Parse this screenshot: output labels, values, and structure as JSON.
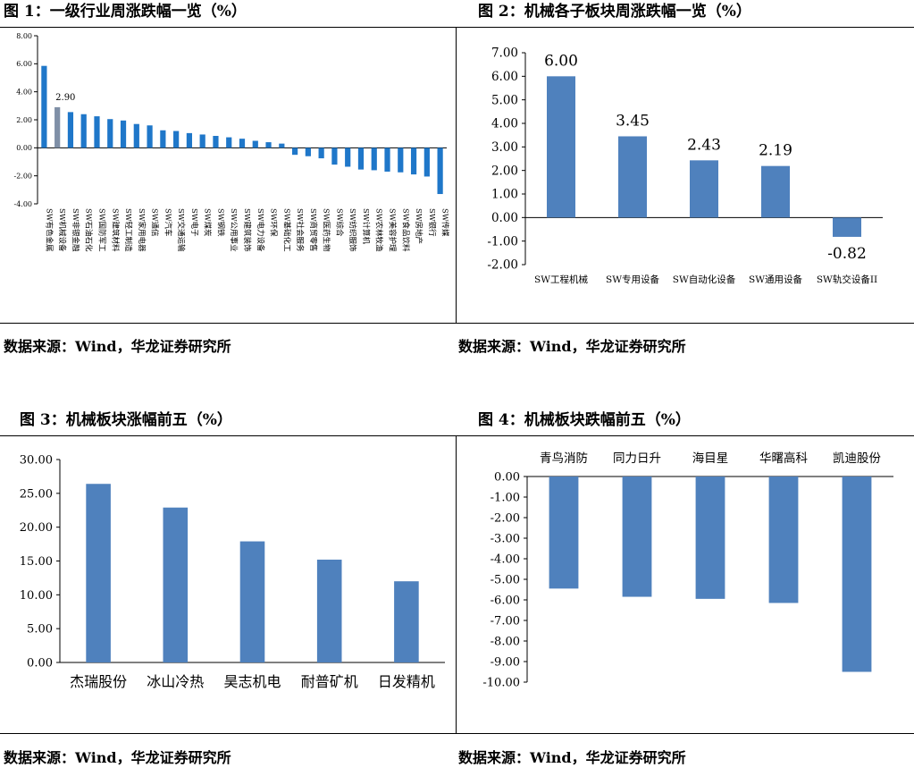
{
  "figures": [
    {
      "caption": "图 1：一级行业周涨跌幅一览（%）",
      "source": "数据来源：Wind，华龙证券研究所"
    },
    {
      "caption": "图 2：机械各子板块周涨跌幅一览（%）",
      "source": "数据来源：Wind，华龙证券研究所"
    },
    {
      "caption": "图 3：机械板块涨幅前五（%）",
      "source": "数据来源：Wind，华龙证券研究所"
    },
    {
      "caption": "图 4：机械板块跌幅前五（%）",
      "source": "数据来源：Wind，华龙证券研究所"
    }
  ],
  "chart_data": [
    {
      "type": "bar",
      "categories": [
        "SW有色金属",
        "SW机械设备",
        "SW非银金融",
        "SW石油石化",
        "SW国防军工",
        "SW建筑材料",
        "SW轻工制造",
        "SW家用电器",
        "SW通信",
        "SW汽车",
        "SW交通运输",
        "SW电子",
        "SW煤炭",
        "SW钢铁",
        "SW公用事业",
        "SW建筑装饰",
        "SW电力设备",
        "SW环保",
        "SW基础化工",
        "SW社会服务",
        "SW商贸零售",
        "SW医药生物",
        "SW综合",
        "SW纺织服饰",
        "SW计算机",
        "SW农林牧渔",
        "SW美容护理",
        "SW食品饮料",
        "SW房地产",
        "SW银行",
        "SW传媒"
      ],
      "values": [
        5.85,
        2.9,
        2.55,
        2.4,
        2.25,
        2.05,
        1.95,
        1.7,
        1.6,
        1.25,
        1.2,
        1.05,
        0.95,
        0.85,
        0.75,
        0.65,
        0.5,
        0.4,
        0.3,
        -0.5,
        -0.6,
        -0.75,
        -1.2,
        -1.35,
        -1.55,
        -1.6,
        -1.7,
        -1.75,
        -1.9,
        -2.05,
        -3.3
      ],
      "highlight_index": 1,
      "data_labels": [
        {
          "index": 1,
          "text": "2.90"
        }
      ],
      "ylim": [
        -4,
        8
      ],
      "yticks": [
        "8.00",
        "6.00",
        "4.00",
        "2.00",
        "0.00",
        "-2.00",
        "-4.00"
      ],
      "colors": {
        "bar": "#1f77c9",
        "highlight": "#7f8fa6"
      }
    },
    {
      "type": "bar",
      "categories": [
        "SW工程机械",
        "SW专用设备",
        "SW自动化设备",
        "SW通用设备",
        "SW轨交设备II"
      ],
      "values": [
        6.0,
        3.45,
        2.43,
        2.19,
        -0.82
      ],
      "data_labels": [
        "6.00",
        "3.45",
        "2.43",
        "2.19",
        "-0.82"
      ],
      "ylim": [
        -2,
        7
      ],
      "yticks": [
        "7.00",
        "6.00",
        "5.00",
        "4.00",
        "3.00",
        "2.00",
        "1.00",
        "0.00",
        "-1.00",
        "-2.00"
      ],
      "colors": {
        "bar": "#4f81bd"
      }
    },
    {
      "type": "bar",
      "categories": [
        "杰瑞股份",
        "冰山冷热",
        "昊志机电",
        "耐普矿机",
        "日发精机"
      ],
      "values": [
        26.4,
        22.9,
        17.9,
        15.2,
        12.0
      ],
      "ylim": [
        0,
        30
      ],
      "yticks": [
        "30.00",
        "25.00",
        "20.00",
        "15.00",
        "10.00",
        "5.00",
        "0.00"
      ],
      "colors": {
        "bar": "#4f81bd"
      }
    },
    {
      "type": "bar",
      "categories": [
        "青鸟消防",
        "同力日升",
        "海目星",
        "华曙高科",
        "凯迪股份"
      ],
      "values": [
        -5.45,
        -5.85,
        -5.95,
        -6.15,
        -9.5
      ],
      "ylim": [
        -10,
        0
      ],
      "yticks": [
        "0.00",
        "-1.00",
        "-2.00",
        "-3.00",
        "-4.00",
        "-5.00",
        "-6.00",
        "-7.00",
        "-8.00",
        "-9.00",
        "-10.00"
      ],
      "colors": {
        "bar": "#4f81bd"
      }
    }
  ]
}
